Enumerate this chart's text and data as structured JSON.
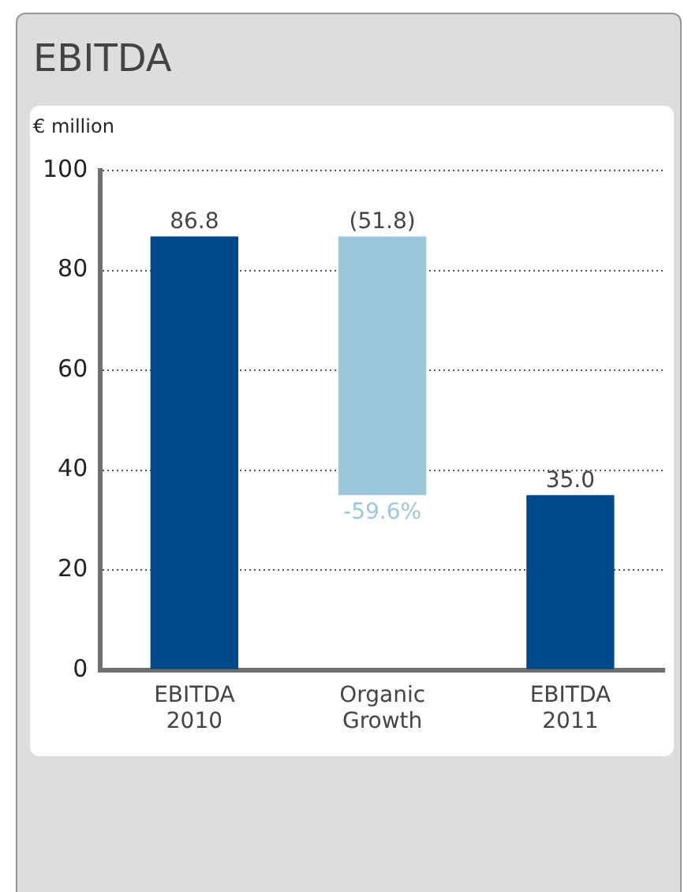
{
  "chart_data": {
    "type": "bar",
    "title": "EBITDA",
    "ylabel": "€ million",
    "categories": [
      "EBITDA\n2010",
      "Organic\nGrowth",
      "EBITDA\n2011"
    ],
    "values": [
      86.8,
      -51.8,
      35.0
    ],
    "base": [
      0,
      86.8,
      0
    ],
    "colors": [
      "#004887",
      "#9cc6dc",
      "#004887"
    ],
    "value_labels": [
      "86.8",
      "(51.8)",
      "35.0"
    ],
    "annotations": [
      {
        "text": "-59.6%",
        "x": "Organic\nGrowth",
        "y": 35.0
      }
    ],
    "ylim": [
      0,
      100
    ],
    "yticks": [
      0,
      20,
      40,
      60,
      80,
      100
    ],
    "grid": "y",
    "legend": false
  }
}
